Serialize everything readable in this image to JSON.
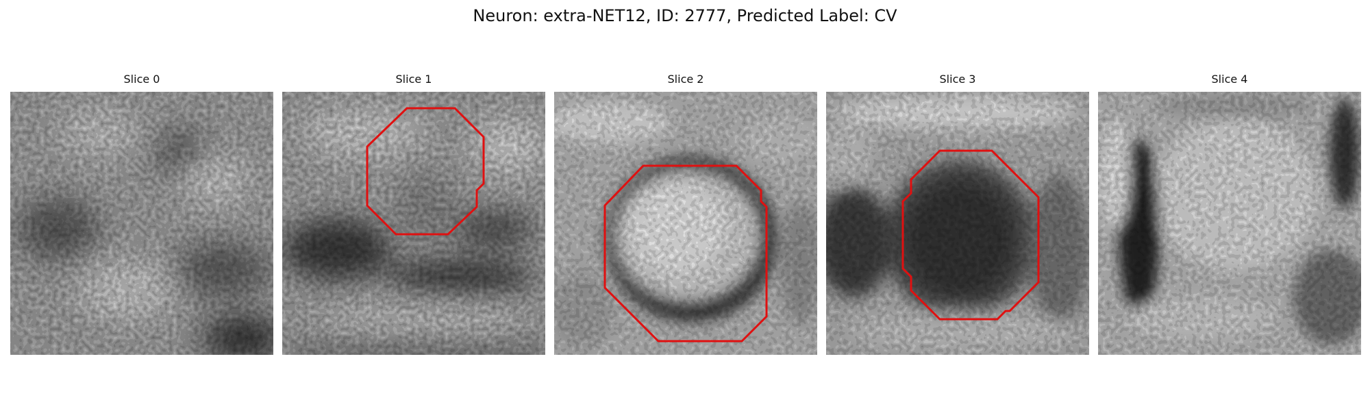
{
  "figure": {
    "title": "Neuron: extra-NET12, ID: 2777, Predicted Label: CV",
    "slices": [
      {
        "title": "Slice 0",
        "has_contour": false
      },
      {
        "title": "Slice 1",
        "has_contour": true
      },
      {
        "title": "Slice 2",
        "has_contour": true
      },
      {
        "title": "Slice 3",
        "has_contour": true
      },
      {
        "title": "Slice 4",
        "has_contour": false
      }
    ],
    "contour_color": "#e01010",
    "colormap": "gray"
  }
}
